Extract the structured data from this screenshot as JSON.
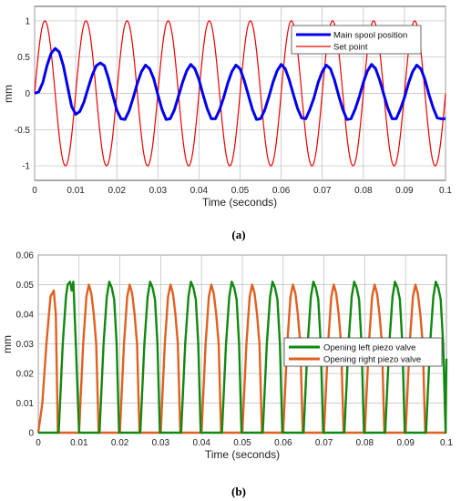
{
  "chart_data": [
    {
      "id": "a",
      "type": "line",
      "caption": "(a)",
      "xlabel": "Time (seconds)",
      "ylabel": "mm",
      "xlim": [
        0,
        0.1
      ],
      "ylim": [
        -1.2,
        1.2
      ],
      "x_ticks": [
        "0",
        "0.01",
        "0.02",
        "0.03",
        "0.04",
        "0.05",
        "0.06",
        "0.07",
        "0.08",
        "0.09",
        "0.1"
      ],
      "y_ticks": [
        "-1",
        "-0.5",
        "0",
        "0.5",
        "1"
      ],
      "grid": true,
      "legend_position": "top-right",
      "series": [
        {
          "name": "Main spool position",
          "color": "#0000ee",
          "x": [
            0.0,
            0.001,
            0.002,
            0.003,
            0.004,
            0.005,
            0.006,
            0.007,
            0.008,
            0.009,
            0.01,
            0.011,
            0.012,
            0.013,
            0.014,
            0.015,
            0.016,
            0.017,
            0.018,
            0.019,
            0.02,
            0.021,
            0.022,
            0.023,
            0.024,
            0.025,
            0.026,
            0.027,
            0.028,
            0.029,
            0.03,
            0.031,
            0.032,
            0.033,
            0.034,
            0.035,
            0.036,
            0.037,
            0.038,
            0.039,
            0.04,
            0.041,
            0.042,
            0.043,
            0.044,
            0.045,
            0.046,
            0.047,
            0.048,
            0.049,
            0.05,
            0.051,
            0.052,
            0.053,
            0.054,
            0.055,
            0.056,
            0.057,
            0.058,
            0.059,
            0.06,
            0.061,
            0.062,
            0.063,
            0.064,
            0.065,
            0.066,
            0.067,
            0.068,
            0.069,
            0.07,
            0.071,
            0.072,
            0.073,
            0.074,
            0.075,
            0.076,
            0.077,
            0.078,
            0.079,
            0.08,
            0.081,
            0.082,
            0.083,
            0.084,
            0.085,
            0.086,
            0.087,
            0.088,
            0.089,
            0.09,
            0.091,
            0.092,
            0.093,
            0.094,
            0.095,
            0.096,
            0.097,
            0.098,
            0.099,
            0.1
          ],
          "y": [
            0.0,
            0.02,
            0.15,
            0.38,
            0.55,
            0.62,
            0.57,
            0.38,
            0.1,
            -0.18,
            -0.29,
            -0.25,
            -0.12,
            0.07,
            0.25,
            0.38,
            0.42,
            0.38,
            0.2,
            -0.02,
            -0.23,
            -0.35,
            -0.36,
            -0.24,
            -0.06,
            0.14,
            0.3,
            0.39,
            0.34,
            0.2,
            -0.02,
            -0.22,
            -0.36,
            -0.35,
            -0.23,
            -0.04,
            0.15,
            0.31,
            0.4,
            0.34,
            0.19,
            -0.02,
            -0.21,
            -0.35,
            -0.35,
            -0.23,
            -0.06,
            0.14,
            0.3,
            0.39,
            0.34,
            0.18,
            -0.02,
            -0.22,
            -0.36,
            -0.35,
            -0.23,
            -0.05,
            0.15,
            0.31,
            0.4,
            0.34,
            0.18,
            -0.02,
            -0.21,
            -0.34,
            -0.35,
            -0.22,
            -0.06,
            0.15,
            0.3,
            0.39,
            0.34,
            0.18,
            -0.03,
            -0.22,
            -0.36,
            -0.35,
            -0.22,
            -0.05,
            0.15,
            0.31,
            0.4,
            0.34,
            0.18,
            -0.02,
            -0.21,
            -0.35,
            -0.35,
            -0.22,
            -0.06,
            0.14,
            0.3,
            0.39,
            0.34,
            0.19,
            -0.02,
            -0.2,
            -0.34,
            -0.35,
            -0.35
          ]
        },
        {
          "name": "Set point",
          "color": "#ee0000",
          "function": "sine",
          "amplitude": 1,
          "frequency_hz": 100
        }
      ]
    },
    {
      "id": "b",
      "type": "line",
      "caption": "(b)",
      "xlabel": "Time (seconds)",
      "ylabel": "mm",
      "xlim": [
        0,
        0.1
      ],
      "ylim": [
        0,
        0.06
      ],
      "x_ticks": [
        "0",
        "0.01",
        "0.02",
        "0.03",
        "0.04",
        "0.05",
        "0.06",
        "0.07",
        "0.08",
        "0.09",
        "0.1"
      ],
      "y_ticks": [
        "0",
        "0.01",
        "0.02",
        "0.03",
        "0.04",
        "0.05",
        "0.06"
      ],
      "grid": true,
      "legend_position": "center-right",
      "series": [
        {
          "name": "Opening left piezo valve",
          "color": "#118811",
          "pulse_period": 0.01,
          "pulses": [
            {
              "x": [
                0.005,
                0.006,
                0.0068,
                0.0072,
                0.0078,
                0.0082,
                0.0086,
                0.0092,
                0.01
              ],
              "y": [
                0,
                0.03,
                0.046,
                0.05,
                0.051,
                0.048,
                0.051,
                0.03,
                0
              ]
            }
          ],
          "first_full_pulse": {
            "x": [
              0.015,
              0.016,
              0.0168,
              0.0174,
              0.018,
              0.0186,
              0.0192,
              0.0198
            ],
            "y": [
              0,
              0.03,
              0.046,
              0.051,
              0.049,
              0.045,
              0.03,
              0
            ]
          }
        },
        {
          "name": "Opening right piezo valve",
          "color": "#e06020",
          "pulse_period": 0.01,
          "first_pulse": {
            "x": [
              0.0,
              0.001,
              0.002,
              0.003,
              0.0038,
              0.0043,
              0.0048
            ],
            "y": [
              0,
              0.01,
              0.03,
              0.046,
              0.048,
              0.04,
              0
            ]
          },
          "repeating_pulse": {
            "x": [
              0.01,
              0.011,
              0.0118,
              0.0124,
              0.013,
              0.0136,
              0.0142,
              0.0148
            ],
            "y": [
              0,
              0.03,
              0.046,
              0.05,
              0.047,
              0.04,
              0.03,
              0
            ]
          }
        }
      ]
    }
  ]
}
